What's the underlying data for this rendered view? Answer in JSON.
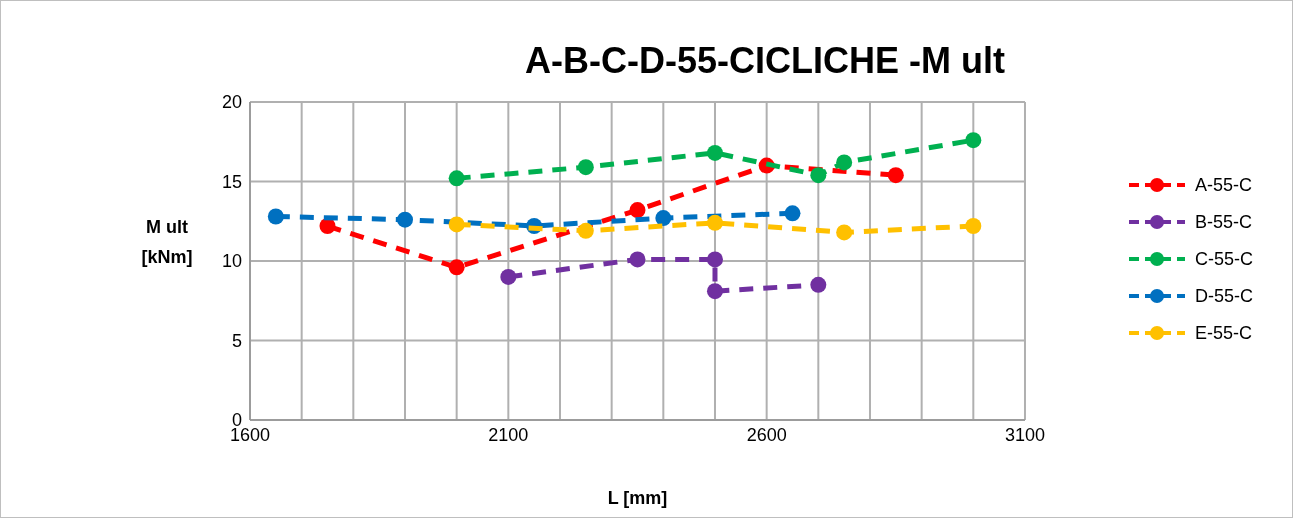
{
  "chart_data": {
    "type": "line",
    "title": "A-B-C-D-55-CICLICHE -M ult",
    "xlabel": "L [mm]",
    "ylabel": "M ult [kNm]",
    "xlim": [
      1600,
      3100
    ],
    "xticks": [
      1600,
      {
        "value": 1700,
        "label": null
      },
      {
        "value": 1800,
        "label": null
      },
      {
        "value": 1900,
        "label": null
      },
      {
        "value": 2000,
        "label": null
      },
      2100,
      {
        "value": 2200,
        "label": null
      },
      {
        "value": 2300,
        "label": null
      },
      {
        "value": 2400,
        "label": null
      },
      {
        "value": 2500,
        "label": null
      },
      2600,
      {
        "value": 2700,
        "label": null
      },
      {
        "value": 2800,
        "label": null
      },
      {
        "value": 2900,
        "label": null
      },
      {
        "value": 3000,
        "label": null
      },
      3100
    ],
    "ylim": [
      0,
      20
    ],
    "yticks": [
      0,
      5,
      10,
      15,
      20
    ],
    "grid": true,
    "legend": "right",
    "marker": "circle",
    "line_style": "dashed",
    "series": [
      {
        "name": "A-55-C",
        "color": "#ff0000",
        "x": [
          1750,
          2000,
          2350,
          2600,
          2850
        ],
        "values": [
          12.2,
          9.6,
          13.2,
          16.0,
          15.4
        ]
      },
      {
        "name": "B-55-C",
        "color": "#7030a0",
        "x": [
          2100,
          2350,
          2500,
          2500,
          2700
        ],
        "values": [
          9.0,
          10.1,
          10.1,
          8.1,
          8.5
        ]
      },
      {
        "name": "C-55-C",
        "color": "#00b050",
        "x": [
          2000,
          2250,
          2500,
          2700,
          2750,
          3000
        ],
        "values": [
          15.2,
          15.9,
          16.8,
          15.4,
          16.2,
          17.6
        ]
      },
      {
        "name": "D-55-C",
        "color": "#0070c0",
        "x": [
          1650,
          1900,
          2150,
          2400,
          2650
        ],
        "values": [
          12.8,
          12.6,
          12.2,
          12.7,
          13.0
        ]
      },
      {
        "name": "E-55-C",
        "color": "#ffc000",
        "x": [
          2000,
          2250,
          2500,
          2750,
          3000
        ],
        "values": [
          12.3,
          11.9,
          12.4,
          11.8,
          12.2
        ]
      }
    ]
  }
}
